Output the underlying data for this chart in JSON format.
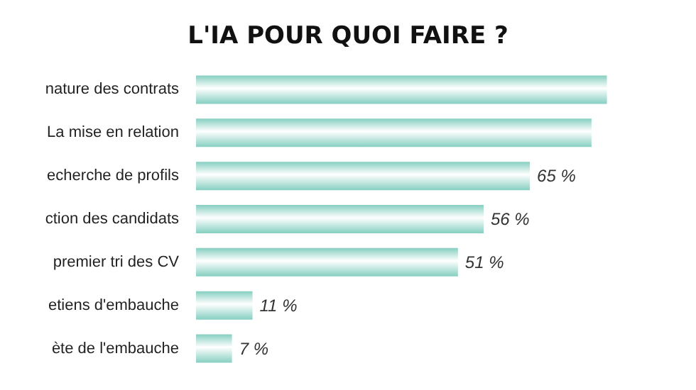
{
  "chart_data": {
    "type": "bar",
    "orientation": "horizontal",
    "title": "L'IA POUR QUOI FAIRE ?",
    "categories": [
      "nature des contrats",
      "La mise en relation",
      "echerche de profils",
      "ction des candidats",
      "premier tri des CV",
      "etiens d'embauche",
      "ète de l'embauche"
    ],
    "values": [
      80,
      77,
      65,
      56,
      51,
      11,
      7
    ],
    "value_labels": [
      null,
      null,
      "65 %",
      "56 %",
      "51 %",
      "11 %",
      "7 %"
    ],
    "color": "#86cfc1"
  }
}
